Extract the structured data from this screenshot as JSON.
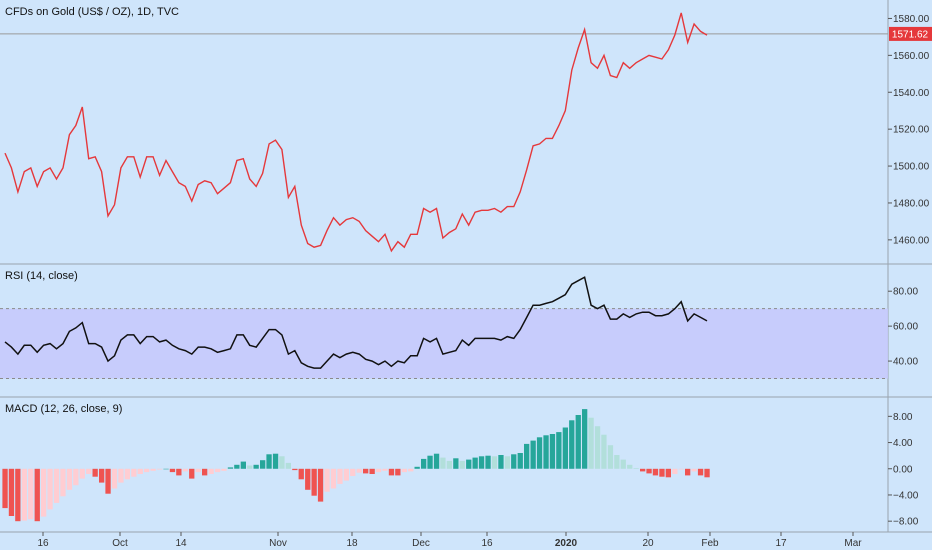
{
  "header": {
    "symbol_title": "CFDs on Gold (US$ / OZ), 1D, TVC"
  },
  "colors": {
    "background": "#cfe5fb",
    "price_line": "#e5383b",
    "price_label_bg": "#e5383b",
    "rsi_line": "#111111",
    "rsi_band": "#c6c8fb",
    "macd_pos_strong": "#26a69a",
    "macd_pos_weak": "#b2dfdb",
    "macd_neg_strong": "#ef5350",
    "macd_neg_weak": "#ffcdd2",
    "grid": "#888888"
  },
  "x_axis": {
    "ticks": [
      {
        "label": "16",
        "bold": false
      },
      {
        "label": "Oct",
        "bold": false
      },
      {
        "label": "14",
        "bold": false
      },
      {
        "label": "Nov",
        "bold": false
      },
      {
        "label": "18",
        "bold": false
      },
      {
        "label": "Dec",
        "bold": false
      },
      {
        "label": "16",
        "bold": false
      },
      {
        "label": "2020",
        "bold": true
      },
      {
        "label": "20",
        "bold": false
      },
      {
        "label": "Feb",
        "bold": false
      },
      {
        "label": "17",
        "bold": false
      },
      {
        "label": "Mar",
        "bold": false
      }
    ]
  },
  "chart_data": [
    {
      "type": "line",
      "title": "CFDs on Gold (US$ / OZ), 1D, TVC",
      "last_price_label": "1571.62",
      "last_price": 1571.62,
      "ylim": [
        1448,
        1590
      ],
      "y_ticks": [
        "1460.00",
        "1480.00",
        "1500.00",
        "1520.00",
        "1540.00",
        "1560.00",
        "1580.00"
      ],
      "y_tick_values": [
        1460,
        1480,
        1500,
        1520,
        1540,
        1560,
        1580
      ],
      "values": [
        1507,
        1499,
        1486,
        1497,
        1499,
        1489,
        1497,
        1499,
        1493,
        1499,
        1517,
        1522,
        1532,
        1504,
        1505,
        1497,
        1473,
        1479,
        1499,
        1505,
        1505,
        1494,
        1505,
        1505,
        1495,
        1503,
        1497,
        1491,
        1489,
        1481,
        1490,
        1492,
        1491,
        1485,
        1488,
        1491,
        1503,
        1504,
        1493,
        1489,
        1496,
        1512,
        1514,
        1509,
        1483,
        1489,
        1468,
        1458,
        1456,
        1457,
        1465,
        1472,
        1468,
        1471,
        1472,
        1470,
        1465,
        1462,
        1459,
        1463,
        1454,
        1459,
        1456,
        1463,
        1463,
        1477,
        1475,
        1477,
        1461,
        1464,
        1466,
        1474,
        1468,
        1475,
        1476,
        1476,
        1477,
        1475,
        1478,
        1478,
        1486,
        1498,
        1511,
        1512,
        1515,
        1515,
        1522,
        1530,
        1552,
        1564,
        1574,
        1556,
        1553,
        1560,
        1549,
        1548,
        1556,
        1553,
        1556,
        1558,
        1560,
        1559,
        1558,
        1563,
        1571,
        1583,
        1567,
        1577,
        1573,
        1571
      ]
    },
    {
      "type": "line",
      "title": "RSI (14, close)",
      "band": [
        30,
        70
      ],
      "ylim": [
        20,
        95
      ],
      "y_ticks": [
        "40.00",
        "60.00",
        "80.00"
      ],
      "y_tick_values": [
        40,
        60,
        80
      ],
      "values": [
        51,
        48,
        44,
        49,
        49,
        45,
        49,
        50,
        47,
        50,
        57,
        59,
        62,
        50,
        50,
        48,
        40,
        43,
        52,
        55,
        55,
        50,
        54,
        54,
        51,
        52,
        49,
        47,
        46,
        44,
        48,
        48,
        47,
        45,
        46,
        47,
        55,
        55,
        49,
        48,
        53,
        58,
        58,
        55,
        44,
        46,
        39,
        37,
        36,
        36,
        40,
        44,
        42,
        44,
        45,
        44,
        41,
        40,
        38,
        40,
        37,
        40,
        39,
        43,
        43,
        53,
        51,
        53,
        44,
        45,
        46,
        52,
        49,
        53,
        53,
        53,
        53,
        52,
        54,
        53,
        58,
        65,
        72,
        72,
        73,
        74,
        76,
        78,
        84,
        86,
        88,
        72,
        70,
        72,
        64,
        64,
        67,
        65,
        67,
        68,
        68,
        66,
        66,
        67,
        70,
        74,
        63,
        67,
        65,
        63
      ]
    },
    {
      "type": "bar",
      "title": "MACD (12, 26, close, 9)",
      "ylim": [
        -9.5,
        10.8
      ],
      "y_ticks": [
        "−8.00",
        "−4.00",
        "0.00",
        "4.00",
        "8.00"
      ],
      "y_tick_values": [
        -8,
        -4,
        0,
        4,
        8
      ],
      "values": [
        -6,
        -7.2,
        -8,
        -7.9,
        -7.7,
        -8,
        -7.3,
        -6.2,
        -5.2,
        -4.2,
        -3.2,
        -2.5,
        -1.5,
        -0.8,
        -1.2,
        -2.1,
        -3.8,
        -3.0,
        -2.1,
        -1.6,
        -1.2,
        -0.8,
        -0.5,
        -0.3,
        -0.1,
        0,
        -0.5,
        -1,
        -0.4,
        -1.5,
        -0.5,
        -1,
        -0.8,
        -0.5,
        -0.3,
        0.2,
        0.6,
        1.1,
        0.5,
        0.6,
        1.3,
        2.2,
        2.3,
        1.9,
        0.9,
        -0.2,
        -1.6,
        -3.2,
        -4.1,
        -5.0,
        -3.5,
        -3.0,
        -2.3,
        -1.8,
        -1.1,
        -0.6,
        -0.7,
        -0.8,
        -0.5,
        -0.3,
        -1.0,
        -1.0,
        -0.5,
        -0.4,
        0.3,
        1.5,
        2.0,
        2.3,
        1.7,
        1.2,
        1.6,
        1.2,
        1.4,
        1.7,
        1.9,
        2.0,
        1.9,
        2.1,
        1.9,
        2.2,
        2.4,
        3.8,
        4.3,
        4.8,
        5.1,
        5.3,
        5.6,
        6.3,
        7.4,
        8.2,
        9.1,
        7.8,
        6.5,
        5.2,
        3.6,
        2.1,
        1.4,
        0.6,
        0.1,
        -0.4,
        -0.7,
        -1.0,
        -1.2,
        -1.3,
        -0.8,
        -0.1,
        -1.0,
        -0.4,
        -1.0,
        -1.3
      ]
    }
  ]
}
